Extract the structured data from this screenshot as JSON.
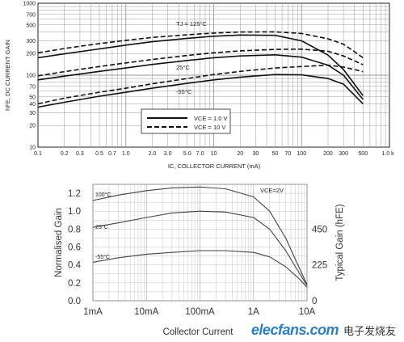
{
  "chart_data": [
    {
      "type": "line",
      "xscale": "log",
      "yscale": "log",
      "xlim": [
        0.1,
        1000
      ],
      "ylim": [
        10,
        1000
      ],
      "xlabel": "IC, COLLECTOR CURRENT (mA)",
      "ylabel": "hFE, DC CURRENT GAIN",
      "x_ticks": [
        "0.1",
        "0.2",
        "0.3",
        "0.5",
        "0.7",
        "1.0",
        "2.0",
        "3.0",
        "5.0",
        "7.0",
        "10",
        "20",
        "30",
        "50",
        "70",
        "100",
        "200",
        "300",
        "500",
        "1.0 k"
      ],
      "y_ticks": [
        "10",
        "20",
        "30",
        "40",
        "50",
        "70",
        "100",
        "200",
        "300",
        "500",
        "700",
        "1000"
      ],
      "grid": true,
      "legend": {
        "position": "lower-center",
        "entries": [
          "VCE = 1.0 V",
          "VCE = 10 V"
        ]
      },
      "annotations": [
        "TJ = 125°C",
        "25°C",
        "-55°C"
      ],
      "series": [
        {
          "name": "VCE = 1.0 V",
          "condition": "TJ = 125°C",
          "style": "solid",
          "x": [
            0.1,
            0.2,
            0.5,
            1,
            2,
            5,
            10,
            20,
            50,
            100,
            200,
            300,
            500
          ],
          "y": [
            175,
            198,
            232,
            262,
            292,
            325,
            348,
            362,
            358,
            300,
            190,
            120,
            52
          ]
        },
        {
          "name": "VCE = 10 V",
          "condition": "TJ = 125°C",
          "style": "dashed",
          "x": [
            0.1,
            0.2,
            0.5,
            1,
            2,
            5,
            10,
            20,
            50,
            100,
            200,
            300,
            500
          ],
          "y": [
            205,
            235,
            275,
            305,
            335,
            365,
            385,
            398,
            400,
            380,
            320,
            270,
            175
          ]
        },
        {
          "name": "VCE = 1.0 V",
          "condition": "25°C",
          "style": "solid",
          "x": [
            0.1,
            0.2,
            0.5,
            1,
            2,
            5,
            10,
            20,
            50,
            100,
            200,
            300,
            500
          ],
          "y": [
            86,
            97,
            113,
            126,
            141,
            160,
            175,
            185,
            192,
            178,
            138,
            100,
            46
          ]
        },
        {
          "name": "VCE = 10 V",
          "condition": "25°C",
          "style": "dashed",
          "x": [
            0.1,
            0.2,
            0.5,
            1,
            2,
            5,
            10,
            20,
            50,
            100,
            200,
            300,
            500
          ],
          "y": [
            98,
            112,
            132,
            148,
            165,
            188,
            205,
            218,
            228,
            230,
            215,
            185,
            140
          ]
        },
        {
          "name": "VCE = 1.0 V",
          "condition": "-55°C",
          "style": "solid",
          "x": [
            0.1,
            0.2,
            0.5,
            1,
            2,
            5,
            10,
            20,
            50,
            100,
            200,
            300,
            500
          ],
          "y": [
            36,
            42,
            51,
            58,
            66,
            77,
            86,
            94,
            102,
            101,
            90,
            75,
            40
          ]
        },
        {
          "name": "VCE = 10 V",
          "condition": "-55°C",
          "style": "dashed",
          "x": [
            0.1,
            0.2,
            0.5,
            1,
            2,
            5,
            10,
            20,
            50,
            100,
            200,
            300,
            500
          ],
          "y": [
            40,
            48,
            58,
            66,
            76,
            90,
            102,
            113,
            126,
            132,
            138,
            130,
            112
          ]
        }
      ]
    },
    {
      "type": "line",
      "xscale": "log",
      "xlim": [
        "1mA",
        "10A"
      ],
      "ylim": [
        0,
        1.3
      ],
      "xlabel": "Collector Current",
      "ylabel": "Normalised Gain",
      "y2label": "Typical Gain (hFE)",
      "x_ticks": [
        "1mA",
        "10mA",
        "100mA",
        "1A",
        "10A"
      ],
      "y_ticks": [
        "0.0",
        "0.2",
        "0.4",
        "0.6",
        "0.8",
        "1.0",
        "1.2"
      ],
      "y2_ticks": [
        "0",
        "225",
        "450"
      ],
      "grid": true,
      "annotations": [
        "VCE=2V"
      ],
      "series": [
        {
          "name": "100°C",
          "x": [
            "1mA",
            "3mA",
            "10mA",
            "30mA",
            "100mA",
            "300mA",
            "1A",
            "2A",
            "4A",
            "7A",
            "10A"
          ],
          "y": [
            1.12,
            1.18,
            1.23,
            1.26,
            1.27,
            1.25,
            1.16,
            1.0,
            0.7,
            0.38,
            0.18
          ]
        },
        {
          "name": "25°C",
          "x": [
            "1mA",
            "3mA",
            "10mA",
            "30mA",
            "100mA",
            "300mA",
            "1A",
            "2A",
            "4A",
            "7A",
            "10A"
          ],
          "y": [
            0.82,
            0.87,
            0.93,
            0.98,
            1.0,
            0.99,
            0.93,
            0.8,
            0.56,
            0.32,
            0.17
          ]
        },
        {
          "name": "-55°C",
          "x": [
            "1mA",
            "3mA",
            "10mA",
            "30mA",
            "100mA",
            "300mA",
            "1A",
            "2A",
            "4A",
            "7A",
            "10A"
          ],
          "y": [
            0.43,
            0.48,
            0.52,
            0.54,
            0.56,
            0.56,
            0.54,
            0.49,
            0.38,
            0.25,
            0.15
          ]
        }
      ]
    }
  ],
  "watermark": {
    "text": "elecfans.com",
    "cn_text": "电子发烧友",
    "color": "#2a7fc9"
  }
}
